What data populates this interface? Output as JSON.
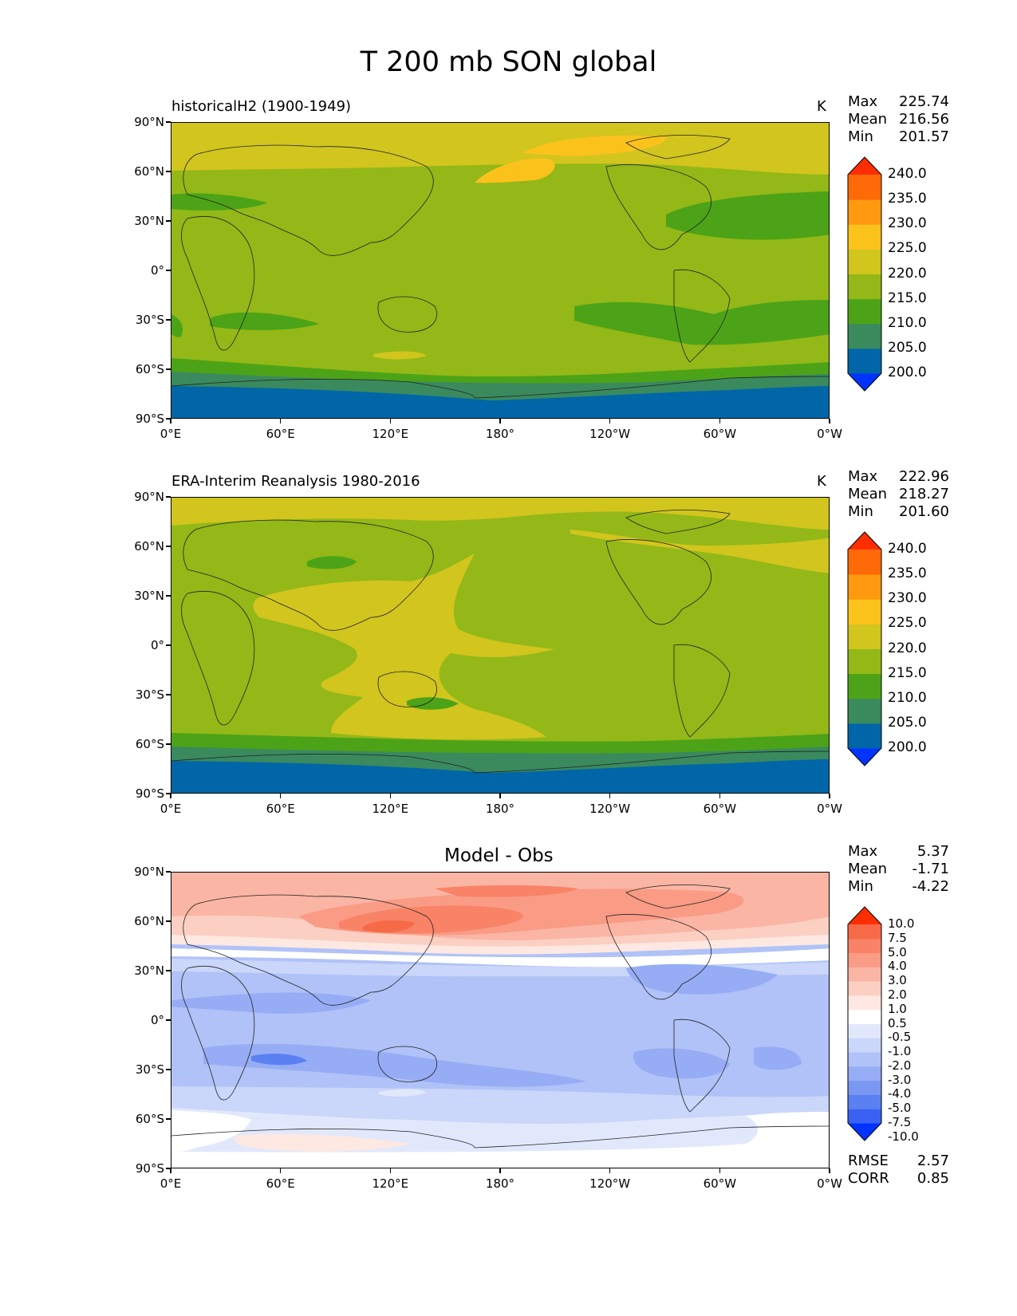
{
  "title": "T 200 mb SON global",
  "x_ticks": [
    "0°E",
    "60°E",
    "120°E",
    "180°",
    "120°W",
    "60°W",
    "0°W"
  ],
  "y_ticks": [
    "90°N",
    "60°N",
    "30°N",
    "0°",
    "30°S",
    "60°S",
    "90°S"
  ],
  "panels": [
    {
      "label": "historicalH2 (1900-1949)",
      "units": "K",
      "stats": {
        "max_label": "Max",
        "max": "225.74",
        "mean_label": "Mean",
        "mean": "216.56",
        "min_label": "Min",
        "min": "201.57"
      },
      "colorbar_labels": [
        "240.0",
        "235.0",
        "230.0",
        "225.0",
        "220.0",
        "215.0",
        "210.0",
        "205.0",
        "200.0"
      ]
    },
    {
      "label": "ERA-Interim Reanalysis 1980-2016",
      "units": "K",
      "stats": {
        "max_label": "Max",
        "max": "222.96",
        "mean_label": "Mean",
        "mean": "218.27",
        "min_label": "Min",
        "min": "201.60"
      },
      "colorbar_labels": [
        "240.0",
        "235.0",
        "230.0",
        "225.0",
        "220.0",
        "215.0",
        "210.0",
        "205.0",
        "200.0"
      ]
    },
    {
      "title": "Model - Obs",
      "stats": {
        "max_label": "Max",
        "max": "5.37",
        "mean_label": "Mean",
        "mean": "-1.71",
        "min_label": "Min",
        "min": "-4.22"
      },
      "colorbar_labels": [
        "10.0",
        "7.5",
        "5.0",
        "4.0",
        "3.0",
        "2.0",
        "1.0",
        "0.5",
        "-0.5",
        "-1.0",
        "-2.0",
        "-3.0",
        "-4.0",
        "-5.0",
        "-7.5",
        "-10.0"
      ],
      "rmse_label": "RMSE",
      "rmse": "2.57",
      "corr_label": "CORR",
      "corr": "0.85"
    }
  ],
  "colors": {
    "abs_levels": [
      "#0033ff",
      "#0066a8",
      "#3a8a5e",
      "#4ca317",
      "#93b818",
      "#d1c51e",
      "#fcc21c",
      "#ff9a10",
      "#ff6a08",
      "#ff2e00"
    ],
    "diff_levels": [
      "#0033ff",
      "#3a62f2",
      "#5a80f2",
      "#7a97f2",
      "#96acf5",
      "#b0c2f7",
      "#cad6fa",
      "#e2e8fc",
      "#ffffff",
      "#fde8e2",
      "#fccfc3",
      "#fbb5a4",
      "#fa9b85",
      "#f88366",
      "#f66a48",
      "#ff2e00"
    ]
  }
}
